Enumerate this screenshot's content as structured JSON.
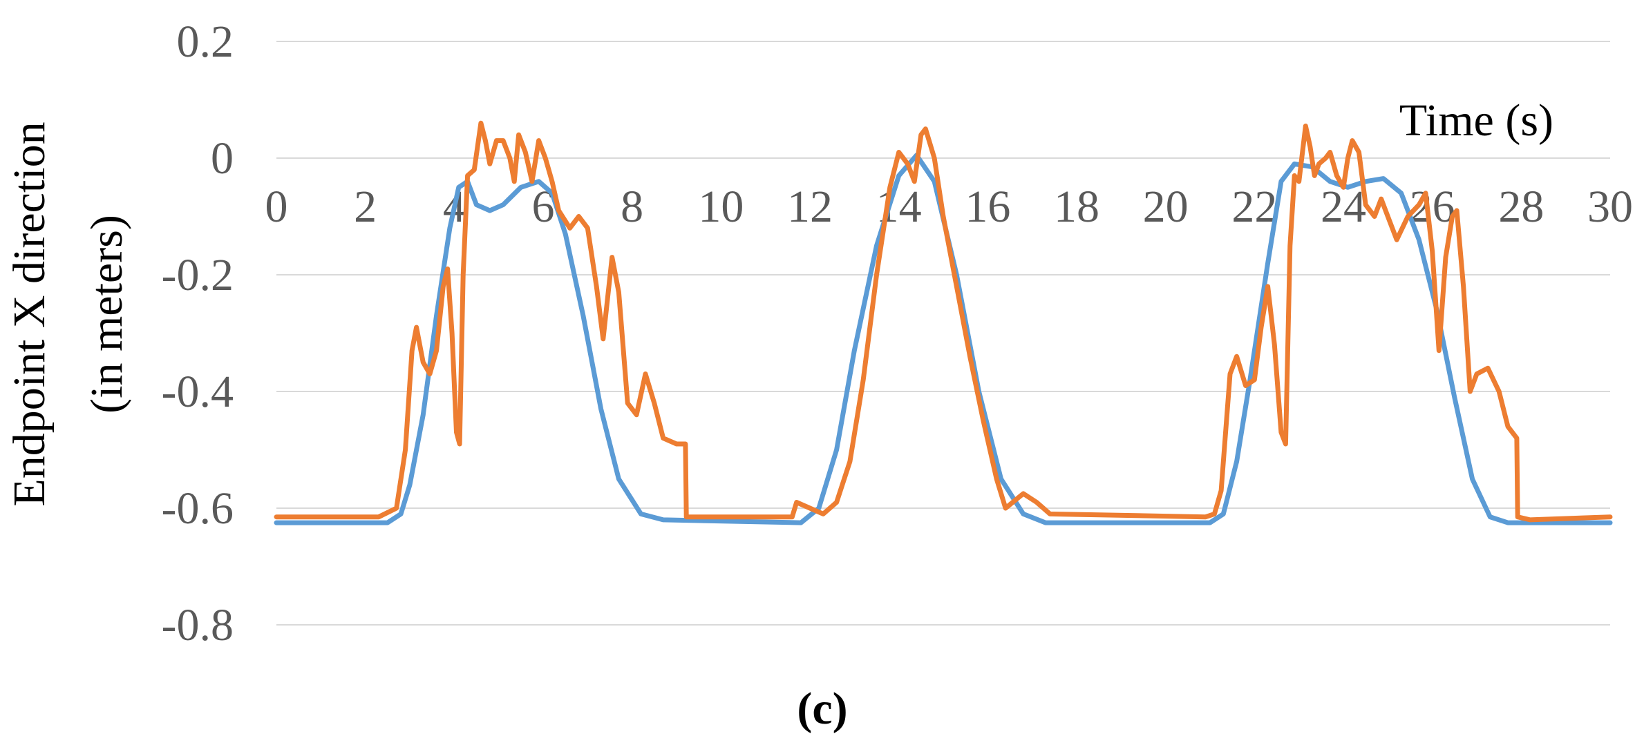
{
  "chart_data": {
    "type": "line",
    "xlabel": "Time (s)",
    "ylabel_lines": [
      "Endpoint X direction",
      "(in meters)"
    ],
    "caption": "(c)",
    "xlim": [
      0,
      30
    ],
    "ylim": [
      -0.8,
      0.2
    ],
    "x_ticks": [
      "0",
      "2",
      "4",
      "6",
      "8",
      "10",
      "12",
      "14",
      "16",
      "18",
      "20",
      "22",
      "24",
      "26",
      "28",
      "30"
    ],
    "y_ticks": [
      "0.2",
      "0",
      "-0.2",
      "-0.4",
      "-0.6",
      "-0.8"
    ],
    "grid": "horizontal",
    "legend": "none",
    "series": [
      {
        "color": "#5B9BD5",
        "points": [
          [
            0,
            -0.625
          ],
          [
            2.5,
            -0.625
          ],
          [
            2.8,
            -0.61
          ],
          [
            3.0,
            -0.56
          ],
          [
            3.3,
            -0.44
          ],
          [
            3.6,
            -0.27
          ],
          [
            3.9,
            -0.12
          ],
          [
            4.1,
            -0.05
          ],
          [
            4.3,
            -0.04
          ],
          [
            4.5,
            -0.08
          ],
          [
            4.8,
            -0.09
          ],
          [
            5.1,
            -0.08
          ],
          [
            5.5,
            -0.05
          ],
          [
            5.9,
            -0.04
          ],
          [
            6.2,
            -0.06
          ],
          [
            6.5,
            -0.13
          ],
          [
            6.9,
            -0.27
          ],
          [
            7.3,
            -0.43
          ],
          [
            7.7,
            -0.55
          ],
          [
            8.2,
            -0.61
          ],
          [
            8.7,
            -0.62
          ],
          [
            11.8,
            -0.625
          ],
          [
            12.2,
            -0.6
          ],
          [
            12.6,
            -0.5
          ],
          [
            13.0,
            -0.33
          ],
          [
            13.5,
            -0.15
          ],
          [
            14.0,
            -0.03
          ],
          [
            14.4,
            0.005
          ],
          [
            14.8,
            -0.04
          ],
          [
            15.3,
            -0.2
          ],
          [
            15.8,
            -0.4
          ],
          [
            16.3,
            -0.55
          ],
          [
            16.8,
            -0.61
          ],
          [
            17.3,
            -0.625
          ],
          [
            21.0,
            -0.625
          ],
          [
            21.3,
            -0.61
          ],
          [
            21.6,
            -0.52
          ],
          [
            21.9,
            -0.38
          ],
          [
            22.3,
            -0.18
          ],
          [
            22.6,
            -0.04
          ],
          [
            22.9,
            -0.01
          ],
          [
            23.3,
            -0.015
          ],
          [
            23.7,
            -0.04
          ],
          [
            24.1,
            -0.05
          ],
          [
            24.5,
            -0.04
          ],
          [
            24.9,
            -0.035
          ],
          [
            25.3,
            -0.06
          ],
          [
            25.7,
            -0.14
          ],
          [
            26.1,
            -0.26
          ],
          [
            26.5,
            -0.41
          ],
          [
            26.9,
            -0.55
          ],
          [
            27.3,
            -0.615
          ],
          [
            27.7,
            -0.625
          ],
          [
            30,
            -0.625
          ]
        ]
      },
      {
        "color": "#ED7D31",
        "points": [
          [
            0,
            -0.615
          ],
          [
            2.3,
            -0.615
          ],
          [
            2.7,
            -0.6
          ],
          [
            2.9,
            -0.5
          ],
          [
            3.05,
            -0.33
          ],
          [
            3.15,
            -0.29
          ],
          [
            3.3,
            -0.35
          ],
          [
            3.45,
            -0.37
          ],
          [
            3.6,
            -0.33
          ],
          [
            3.75,
            -0.22
          ],
          [
            3.85,
            -0.19
          ],
          [
            3.95,
            -0.3
          ],
          [
            4.05,
            -0.47
          ],
          [
            4.12,
            -0.49
          ],
          [
            4.2,
            -0.2
          ],
          [
            4.3,
            -0.03
          ],
          [
            4.45,
            -0.02
          ],
          [
            4.6,
            0.06
          ],
          [
            4.7,
            0.03
          ],
          [
            4.8,
            -0.01
          ],
          [
            4.95,
            0.03
          ],
          [
            5.1,
            0.03
          ],
          [
            5.25,
            0.0
          ],
          [
            5.35,
            -0.04
          ],
          [
            5.45,
            0.04
          ],
          [
            5.6,
            0.01
          ],
          [
            5.75,
            -0.04
          ],
          [
            5.9,
            0.03
          ],
          [
            6.05,
            0.0
          ],
          [
            6.2,
            -0.04
          ],
          [
            6.35,
            -0.09
          ],
          [
            6.6,
            -0.12
          ],
          [
            6.8,
            -0.1
          ],
          [
            7.0,
            -0.12
          ],
          [
            7.2,
            -0.22
          ],
          [
            7.35,
            -0.31
          ],
          [
            7.55,
            -0.17
          ],
          [
            7.7,
            -0.23
          ],
          [
            7.9,
            -0.42
          ],
          [
            8.1,
            -0.44
          ],
          [
            8.3,
            -0.37
          ],
          [
            8.5,
            -0.42
          ],
          [
            8.7,
            -0.48
          ],
          [
            9.0,
            -0.49
          ],
          [
            9.2,
            -0.49
          ],
          [
            9.22,
            -0.615
          ],
          [
            11.6,
            -0.615
          ],
          [
            11.7,
            -0.59
          ],
          [
            12.0,
            -0.6
          ],
          [
            12.3,
            -0.61
          ],
          [
            12.6,
            -0.59
          ],
          [
            12.9,
            -0.52
          ],
          [
            13.2,
            -0.38
          ],
          [
            13.5,
            -0.2
          ],
          [
            13.8,
            -0.05
          ],
          [
            14.0,
            0.01
          ],
          [
            14.2,
            -0.01
          ],
          [
            14.35,
            -0.04
          ],
          [
            14.5,
            0.04
          ],
          [
            14.6,
            0.05
          ],
          [
            14.8,
            0.0
          ],
          [
            15.0,
            -0.1
          ],
          [
            15.3,
            -0.22
          ],
          [
            15.6,
            -0.34
          ],
          [
            15.9,
            -0.45
          ],
          [
            16.2,
            -0.55
          ],
          [
            16.4,
            -0.6
          ],
          [
            16.8,
            -0.575
          ],
          [
            17.1,
            -0.59
          ],
          [
            17.4,
            -0.61
          ],
          [
            20.9,
            -0.615
          ],
          [
            21.1,
            -0.61
          ],
          [
            21.25,
            -0.57
          ],
          [
            21.45,
            -0.37
          ],
          [
            21.6,
            -0.34
          ],
          [
            21.8,
            -0.39
          ],
          [
            22.0,
            -0.38
          ],
          [
            22.15,
            -0.29
          ],
          [
            22.3,
            -0.22
          ],
          [
            22.45,
            -0.32
          ],
          [
            22.6,
            -0.47
          ],
          [
            22.7,
            -0.49
          ],
          [
            22.8,
            -0.15
          ],
          [
            22.9,
            -0.03
          ],
          [
            23.0,
            -0.04
          ],
          [
            23.15,
            0.055
          ],
          [
            23.25,
            0.02
          ],
          [
            23.35,
            -0.03
          ],
          [
            23.45,
            -0.01
          ],
          [
            23.6,
            0.0
          ],
          [
            23.7,
            0.01
          ],
          [
            23.85,
            -0.03
          ],
          [
            24.0,
            -0.05
          ],
          [
            24.1,
            0.0
          ],
          [
            24.2,
            0.03
          ],
          [
            24.35,
            0.01
          ],
          [
            24.5,
            -0.08
          ],
          [
            24.7,
            -0.1
          ],
          [
            24.85,
            -0.07
          ],
          [
            25.0,
            -0.1
          ],
          [
            25.2,
            -0.14
          ],
          [
            25.45,
            -0.1
          ],
          [
            25.7,
            -0.08
          ],
          [
            25.85,
            -0.06
          ],
          [
            26.0,
            -0.16
          ],
          [
            26.15,
            -0.33
          ],
          [
            26.3,
            -0.17
          ],
          [
            26.45,
            -0.1
          ],
          [
            26.55,
            -0.09
          ],
          [
            26.7,
            -0.22
          ],
          [
            26.85,
            -0.4
          ],
          [
            27.0,
            -0.37
          ],
          [
            27.25,
            -0.36
          ],
          [
            27.5,
            -0.4
          ],
          [
            27.7,
            -0.46
          ],
          [
            27.9,
            -0.48
          ],
          [
            27.92,
            -0.615
          ],
          [
            28.2,
            -0.62
          ],
          [
            30,
            -0.615
          ]
        ]
      }
    ]
  }
}
